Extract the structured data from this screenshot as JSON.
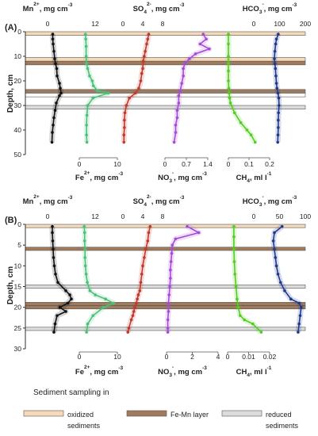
{
  "legend": {
    "title": "Sediment sampling in",
    "items": [
      {
        "label1": "oxidized",
        "label2": "sediments",
        "color": "#f6d9b8"
      },
      {
        "label1": "Fe-Mn layer",
        "label2": "",
        "color": "#a07a5c"
      },
      {
        "label1": "reduced",
        "label2": "sediments",
        "color": "#dcdcdc"
      }
    ]
  },
  "chart_data": [
    {
      "type": "line",
      "panel_label": "(A)",
      "ylabel": "Depth, cm",
      "ylim": [
        0,
        50
      ],
      "y_ticks": [
        "0",
        "10",
        "20",
        "30",
        "40",
        "50"
      ],
      "top_axes": [
        {
          "label": "Mn",
          "sup": "2+",
          "unit": ", mg cm",
          "unit_sup": "-3",
          "ticks": [
            "0",
            "12"
          ]
        },
        {
          "label": "SO",
          "sub": "4",
          "sup": "2-",
          "unit": ", mg cm",
          "unit_sup": "-3",
          "ticks": [
            "0",
            "4",
            "8"
          ]
        },
        {
          "label": "HCO",
          "sub": "3",
          "sup": "-",
          "unit": ", mg cm",
          "unit_sup": "-3",
          "ticks": [
            "0",
            "100",
            "200"
          ]
        }
      ],
      "bottom_axes": [
        {
          "label": "Fe",
          "sup": "2+",
          "unit": ", mg cm",
          "unit_sup": "-3",
          "ticks": [
            "0",
            "10"
          ]
        },
        {
          "label": "NO",
          "sub": "3",
          "sup": "-",
          "unit": ", mg cm",
          "unit_sup": "-3",
          "ticks": [
            "0",
            "0.7",
            "1.4"
          ]
        },
        {
          "label": "CH",
          "sub": "4",
          "unit": ", ml l",
          "unit_sup": "-1",
          "ticks": [
            "0",
            "0.1",
            "0.2"
          ]
        }
      ],
      "bands": [
        {
          "type": "oxidized",
          "y0": 0,
          "y1": 1.5
        },
        {
          "type": "oxidized",
          "y0": 10.5,
          "y1": 12
        },
        {
          "type": "fe-mn",
          "y0": 12,
          "y1": 13.5
        },
        {
          "type": "fe-mn",
          "y0": 23.5,
          "y1": 25
        },
        {
          "type": "boxed",
          "y0": 25,
          "y1": 26.5
        },
        {
          "type": "reduced",
          "y0": 30,
          "y1": 31.5
        }
      ],
      "series": [
        {
          "name": "Mn2+",
          "color": "#111111",
          "x": [
            1.3,
            1.3,
            1.4,
            1.6,
            1.8,
            2.0,
            2.3,
            2.4,
            3.0,
            3.2,
            3.4,
            3.0,
            2.2,
            1.9,
            1.6,
            1.4,
            1.2,
            1.1
          ],
          "y": [
            1,
            3,
            5,
            8,
            11,
            13,
            15,
            18,
            21,
            23,
            25,
            26,
            29,
            32,
            35,
            38,
            41,
            45
          ]
        },
        {
          "name": "Fe2+",
          "color": "#4cc07a",
          "x": [
            1.6,
            1.7,
            1.8,
            1.8,
            1.9,
            2.2,
            2.7,
            3.4,
            3.7,
            4.8,
            7.6,
            3.6,
            2.2,
            2.0,
            1.9,
            1.9,
            2.0
          ],
          "y": [
            1,
            3,
            6,
            10,
            13,
            15,
            18,
            20,
            22,
            24,
            25,
            27,
            30,
            34,
            38,
            42,
            45
          ]
        },
        {
          "name": "SO42-",
          "color": "#c0392b",
          "x": [
            5.2,
            5.0,
            4.8,
            4.5,
            4.3,
            4.1,
            4.0,
            3.8,
            3.6,
            3.2,
            2.5,
            1.3,
            0.7,
            0.4,
            0.3,
            0.3,
            0.2,
            0.2
          ],
          "y": [
            1,
            3,
            5,
            8,
            10,
            12,
            15,
            17,
            20,
            23,
            25,
            27,
            30,
            33,
            36,
            39,
            42,
            45
          ]
        },
        {
          "name": "NO3-",
          "color": "#a54bd6",
          "x": [
            1.25,
            1.35,
            1.15,
            1.45,
            1.0,
            0.8,
            0.65,
            0.6,
            0.6,
            0.55,
            0.5,
            0.45,
            0.45,
            0.4,
            0.4,
            0.35,
            0.35,
            0.3
          ],
          "y": [
            1,
            3,
            5,
            7,
            9,
            11,
            13,
            15,
            18,
            21,
            24,
            26,
            29,
            32,
            35,
            38,
            41,
            45
          ]
        },
        {
          "name": "CH4",
          "color": "#55cc22",
          "x": [
            0.0,
            0.0,
            0.0,
            0.0,
            0.0,
            0.0,
            0.002,
            0.004,
            0.006,
            0.01,
            0.03,
            0.06,
            0.09,
            0.11,
            0.13
          ],
          "y": [
            1,
            5,
            10,
            13,
            16,
            20,
            23,
            25,
            27,
            29,
            33,
            37,
            40,
            42,
            45
          ]
        },
        {
          "name": "HCO3-",
          "color": "#1f3a8a",
          "x": [
            95,
            88,
            85,
            82,
            80,
            82,
            84,
            86,
            88,
            90,
            94,
            97,
            98,
            96,
            95,
            95,
            94,
            93
          ],
          "y": [
            1,
            3,
            5,
            8,
            11,
            13,
            15,
            18,
            21,
            23,
            25,
            27,
            30,
            33,
            36,
            39,
            42,
            45
          ]
        }
      ]
    },
    {
      "type": "line",
      "panel_label": "(B)",
      "ylabel": "Depth, cm",
      "ylim": [
        0,
        30
      ],
      "y_ticks": [
        "0",
        "5",
        "10",
        "15",
        "20",
        "25",
        "30"
      ],
      "top_axes": [
        {
          "label": "Mn",
          "sup": "2+",
          "unit": ", mg cm",
          "unit_sup": "-3",
          "ticks": [
            "0",
            "12"
          ]
        },
        {
          "label": "SO",
          "sub": "4",
          "sup": "2-",
          "unit": ", mg cm",
          "unit_sup": "-3",
          "ticks": [
            "0",
            "4",
            "8"
          ]
        },
        {
          "label": "HCO",
          "sub": "3",
          "sup": "-",
          "unit": ", mg cm",
          "unit_sup": "-3",
          "ticks": [
            "0",
            "50",
            "100"
          ]
        }
      ],
      "bottom_axes": [
        {
          "label": "Fe",
          "sup": "2+",
          "unit": ", mg cm",
          "unit_sup": "-3",
          "ticks": [
            "0",
            "10"
          ]
        },
        {
          "label": "NO",
          "sub": "3",
          "sup": "-",
          "unit": ", mg cm",
          "unit_sup": "-3",
          "ticks": [
            "0",
            "2",
            "4"
          ]
        },
        {
          "label": "CH",
          "sub": "4",
          "unit": ", ml l",
          "unit_sup": "-1",
          "ticks": [
            "0",
            "0.01",
            "0.02"
          ]
        }
      ],
      "bands": [
        {
          "type": "oxidized",
          "y0": 0,
          "y1": 0.8
        },
        {
          "type": "fe-mn",
          "y0": 5.5,
          "y1": 6.3
        },
        {
          "type": "reduced",
          "y0": 14.6,
          "y1": 15.4
        },
        {
          "type": "fe-mn",
          "y0": 18.8,
          "y1": 19.6
        },
        {
          "type": "fe-mn",
          "y0": 19.6,
          "y1": 20.4
        },
        {
          "type": "reduced",
          "y0": 24.8,
          "y1": 25.6
        }
      ],
      "series": [
        {
          "name": "Mn2+",
          "color": "#111111",
          "x": [
            1.2,
            1.2,
            1.3,
            1.4,
            1.5,
            1.7,
            2.0,
            2.6,
            4.6,
            5.6,
            6.0,
            5.1,
            3.1,
            4.6,
            2.4,
            1.9,
            1.6
          ],
          "y": [
            0.5,
            2,
            4,
            6,
            8,
            10,
            12,
            14,
            16,
            17,
            18,
            19,
            20,
            21,
            22,
            24,
            26
          ]
        },
        {
          "name": "Fe2+",
          "color": "#4cc07a",
          "x": [
            1.3,
            1.4,
            1.4,
            1.5,
            1.5,
            1.6,
            1.8,
            2.1,
            2.8,
            4.2,
            6.9,
            9.0,
            6.4,
            3.6,
            2.2,
            1.9
          ],
          "y": [
            0.5,
            2,
            4,
            6,
            8,
            10,
            12,
            14,
            16,
            17,
            18,
            19,
            20,
            22,
            24,
            26
          ]
        },
        {
          "name": "SO42-",
          "color": "#c0392b",
          "x": [
            5.5,
            5.2,
            5.0,
            4.6,
            4.3,
            4.0,
            3.8,
            3.6,
            3.4,
            3.1,
            2.9,
            2.7,
            2.4,
            2.2,
            2.0,
            1.7,
            1.2,
            1.0
          ],
          "y": [
            0.5,
            2,
            4,
            6,
            8,
            10,
            12,
            14,
            16,
            17,
            18,
            19,
            20,
            21,
            22,
            23,
            25,
            26
          ]
        },
        {
          "name": "NO3-",
          "color": "#a54bd6",
          "x": [
            1.6,
            2.5,
            0.7,
            0.45,
            0.4,
            0.35,
            0.3,
            0.3,
            0.25,
            0.2,
            0.15,
            0.15,
            0.1,
            0.1,
            0.1
          ],
          "y": [
            0.5,
            2,
            3.5,
            5,
            7,
            9,
            11,
            13,
            15,
            17,
            19,
            21,
            23,
            25,
            26
          ]
        },
        {
          "name": "CH4",
          "color": "#55cc22",
          "x": [
            0.003,
            0.003,
            0.003,
            0.0032,
            0.0035,
            0.004,
            0.0045,
            0.005,
            0.006,
            0.008,
            0.012,
            0.016
          ],
          "y": [
            0.5,
            3,
            6,
            9,
            12,
            15,
            18,
            20,
            22,
            23,
            24,
            26
          ]
        },
        {
          "name": "HCO3-",
          "color": "#1f3a8a",
          "x": [
            55,
            40,
            38,
            40,
            42,
            44,
            47,
            52,
            60,
            72,
            88,
            92,
            90,
            88,
            86
          ],
          "y": [
            0.5,
            2,
            4,
            6,
            8,
            10,
            12,
            14,
            16,
            18,
            19,
            20,
            22,
            24,
            26
          ]
        }
      ]
    }
  ]
}
